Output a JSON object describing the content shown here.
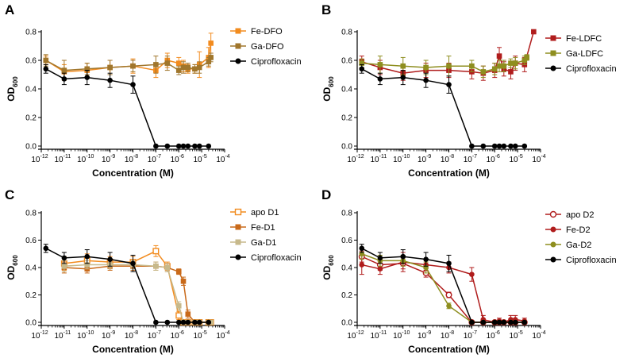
{
  "chart_data": [
    {
      "type": "line",
      "panel": "A",
      "xscale": "log",
      "xlim_log10": [
        -12,
        -4
      ],
      "ylim": [
        0,
        0.8
      ],
      "yticks": [
        0.0,
        0.2,
        0.4,
        0.6,
        0.8
      ],
      "xticks_log10": [
        -12,
        -11,
        -10,
        -9,
        -8,
        -7,
        -6,
        -5,
        -4
      ],
      "xlabel": "Concentration (M)",
      "ylabel": "OD",
      "ylabel_sub": "600",
      "legend_position": "top-right",
      "series": [
        {
          "name": "Fe-DFO",
          "color": "#f28b1e",
          "marker": "square",
          "filled": true,
          "line": true,
          "x_log10": [
            -11.8,
            -11,
            -10,
            -9,
            -8,
            -7,
            -6.5,
            -6,
            -5.8,
            -5.6,
            -5.3,
            -5.1,
            -4.7,
            -4.6
          ],
          "y": [
            0.6,
            0.52,
            0.53,
            0.55,
            0.56,
            0.53,
            0.6,
            0.58,
            0.56,
            0.54,
            0.54,
            0.57,
            0.62,
            0.72
          ],
          "err": [
            0.03,
            0.05,
            0.05,
            0.05,
            0.05,
            0.05,
            0.05,
            0.04,
            0.04,
            0.03,
            0.03,
            0.09,
            0.07,
            0.07
          ]
        },
        {
          "name": "Ga-DFO",
          "color": "#a0762c",
          "marker": "square",
          "filled": true,
          "line": true,
          "x_log10": [
            -11.8,
            -11,
            -10,
            -9,
            -8,
            -7,
            -6.5,
            -6,
            -5.8,
            -5.6,
            -5.3,
            -5.1,
            -4.7,
            -4.6
          ],
          "y": [
            0.6,
            0.53,
            0.54,
            0.55,
            0.56,
            0.57,
            0.58,
            0.53,
            0.55,
            0.55,
            0.54,
            0.55,
            0.59,
            0.62
          ],
          "err": [
            0.04,
            0.07,
            0.04,
            0.05,
            0.04,
            0.06,
            0.05,
            0.03,
            0.04,
            0.03,
            0.03,
            0.04,
            0.03,
            0.03
          ]
        },
        {
          "name": "Ciprofloxacin",
          "color": "#000000",
          "marker": "circle",
          "filled": true,
          "line": true,
          "x_log10": [
            -11.8,
            -11,
            -10,
            -9,
            -8,
            -7,
            -6.5,
            -6,
            -5.8,
            -5.6,
            -5.3,
            -5.1,
            -4.7
          ],
          "y": [
            0.54,
            0.47,
            0.48,
            0.46,
            0.43,
            0.0,
            0.0,
            0.0,
            0.0,
            0.0,
            0.0,
            0.0,
            0.0
          ],
          "err": [
            0.03,
            0.04,
            0.05,
            0.05,
            0.06,
            0,
            0,
            0,
            0,
            0,
            0,
            0,
            0
          ]
        }
      ]
    },
    {
      "type": "line",
      "panel": "B",
      "xscale": "log",
      "xlim_log10": [
        -12,
        -4
      ],
      "ylim": [
        0,
        0.8
      ],
      "yticks": [
        0.0,
        0.2,
        0.4,
        0.6,
        0.8
      ],
      "xticks_log10": [
        -12,
        -11,
        -10,
        -9,
        -8,
        -7,
        -6,
        -5,
        -4
      ],
      "xlabel": "Concentration (M)",
      "ylabel": "OD",
      "ylabel_sub": "600",
      "legend_position": "top-right",
      "series": [
        {
          "name": "Fe-LDFC",
          "color": "#b01c1c",
          "marker": "square",
          "filled": true,
          "line": true,
          "x_log10": [
            -11.8,
            -11,
            -10,
            -9,
            -8,
            -7,
            -6.5,
            -6,
            -5.8,
            -5.6,
            -5.3,
            -5.1,
            -4.7,
            -4.3
          ],
          "y": [
            0.59,
            0.55,
            0.51,
            0.53,
            0.53,
            0.52,
            0.51,
            0.53,
            0.63,
            0.54,
            0.52,
            0.58,
            0.57,
            0.8
          ],
          "err": [
            0.04,
            0.05,
            0.05,
            0.05,
            0.05,
            0.05,
            0.05,
            0.05,
            0.06,
            0.05,
            0.05,
            0.05,
            0.05,
            0
          ]
        },
        {
          "name": "Ga-LDFC",
          "color": "#8e8e1f",
          "marker": "square",
          "filled": true,
          "line": true,
          "x_log10": [
            -11.8,
            -11,
            -10,
            -9,
            -8,
            -7,
            -6.5,
            -6,
            -5.8,
            -5.6,
            -5.3,
            -5.1,
            -4.7,
            -4.6
          ],
          "y": [
            0.58,
            0.57,
            0.56,
            0.55,
            0.56,
            0.56,
            0.52,
            0.54,
            0.56,
            0.56,
            0.58,
            0.58,
            0.6,
            0.62
          ],
          "err": [
            0.03,
            0.06,
            0.06,
            0.05,
            0.07,
            0.04,
            0.04,
            0.04,
            0.04,
            0.04,
            0.03,
            0.04,
            0.03,
            0.02
          ]
        },
        {
          "name": "Ciprofloxacin",
          "color": "#000000",
          "marker": "circle",
          "filled": true,
          "line": true,
          "x_log10": [
            -11.8,
            -11,
            -10,
            -9,
            -8,
            -7,
            -6.5,
            -6,
            -5.8,
            -5.6,
            -5.3,
            -5.1,
            -4.7
          ],
          "y": [
            0.54,
            0.47,
            0.48,
            0.46,
            0.43,
            0.0,
            0.0,
            0.0,
            0.0,
            0.0,
            0.0,
            0.0,
            0.0
          ],
          "err": [
            0.03,
            0.04,
            0.05,
            0.05,
            0.06,
            0,
            0,
            0,
            0,
            0,
            0,
            0,
            0
          ]
        }
      ]
    },
    {
      "type": "line",
      "panel": "C",
      "xscale": "log",
      "xlim_log10": [
        -12,
        -4
      ],
      "ylim": [
        0,
        0.8
      ],
      "yticks": [
        0.0,
        0.2,
        0.4,
        0.6,
        0.8
      ],
      "xticks_log10": [
        -12,
        -11,
        -10,
        -9,
        -8,
        -7,
        -6,
        -5,
        -4
      ],
      "xlabel": "Concentration (M)",
      "ylabel": "OD",
      "ylabel_sub": "600",
      "legend_position": "top-right",
      "series": [
        {
          "name": "apo D1",
          "color": "#f28b1e",
          "marker": "square",
          "filled": false,
          "line": true,
          "x_log10": [
            -11,
            -10,
            -9,
            -8,
            -7,
            -6.5,
            -6,
            -5.8,
            -5.6,
            -5.3,
            -5.1,
            -4.7,
            -4.6
          ],
          "y": [
            0.43,
            0.45,
            0.44,
            0.44,
            0.52,
            0.41,
            0.05,
            0.0,
            0.0,
            0.0,
            0.0,
            0.0,
            0.0
          ],
          "err": [
            0.05,
            0.05,
            0.04,
            0.04,
            0.04,
            0.03,
            0.03,
            0,
            0,
            0,
            0,
            0,
            0
          ]
        },
        {
          "name": "Fe-D1",
          "color": "#c96a1a",
          "marker": "square",
          "filled": true,
          "line": true,
          "x_log10": [
            -11,
            -10,
            -9,
            -8,
            -7,
            -6.5,
            -6,
            -5.8,
            -5.6,
            -5.3,
            -5.1,
            -4.7,
            -4.6
          ],
          "y": [
            0.4,
            0.39,
            0.41,
            0.41,
            0.41,
            0.4,
            0.37,
            0.3,
            0.06,
            0.0,
            0.0,
            0.0,
            0.0
          ],
          "err": [
            0.04,
            0.03,
            0.03,
            0.03,
            0.03,
            0.03,
            0.02,
            0.03,
            0.03,
            0,
            0,
            0,
            0
          ]
        },
        {
          "name": "Ga-D1",
          "color": "#c7b98b",
          "marker": "square",
          "filled": true,
          "line": true,
          "x_log10": [
            -11,
            -10,
            -9,
            -8,
            -7,
            -6.5,
            -6,
            -5.8,
            -5.6,
            -5.3,
            -5.1,
            -4.7,
            -4.6
          ],
          "y": [
            0.41,
            0.42,
            0.42,
            0.42,
            0.41,
            0.4,
            0.12,
            0.0,
            0.0,
            0.0,
            0.0,
            0.0,
            0.0
          ],
          "err": [
            0.04,
            0.03,
            0.03,
            0.03,
            0.03,
            0.03,
            0.03,
            0,
            0,
            0,
            0,
            0,
            0
          ]
        },
        {
          "name": "Ciprofloxacin",
          "color": "#000000",
          "marker": "circle",
          "filled": true,
          "line": true,
          "x_log10": [
            -11.8,
            -11,
            -10,
            -9,
            -8,
            -7,
            -6.5,
            -6,
            -5.8,
            -5.6,
            -5.3,
            -5.1,
            -4.7
          ],
          "y": [
            0.54,
            0.47,
            0.48,
            0.46,
            0.43,
            0.0,
            0.0,
            0.0,
            0.0,
            0.0,
            0.0,
            0.0,
            0.0
          ],
          "err": [
            0.03,
            0.04,
            0.05,
            0.05,
            0.06,
            0,
            0,
            0,
            0,
            0,
            0,
            0,
            0
          ]
        }
      ]
    },
    {
      "type": "line",
      "panel": "D",
      "xscale": "log",
      "xlim_log10": [
        -12,
        -4
      ],
      "ylim": [
        0,
        0.8
      ],
      "yticks": [
        0.0,
        0.2,
        0.4,
        0.6,
        0.8
      ],
      "xticks_log10": [
        -12,
        -11,
        -10,
        -9,
        -8,
        -7,
        -6,
        -5,
        -4
      ],
      "xlabel": "Concentration (M)",
      "ylabel": "OD",
      "ylabel_sub": "600",
      "legend_position": "top-right",
      "series": [
        {
          "name": "apo D2",
          "color": "#b01c1c",
          "marker": "circle",
          "filled": false,
          "line": true,
          "x_log10": [
            -11.8,
            -11,
            -10,
            -9,
            -8,
            -7,
            -6.5,
            -6,
            -5.8,
            -5.6,
            -5.3,
            -5.1,
            -4.7
          ],
          "y": [
            0.48,
            0.42,
            0.43,
            0.36,
            0.2,
            0.0,
            0.0,
            0.0,
            0.0,
            0.0,
            0.0,
            0.0,
            0.0
          ],
          "err": [
            0.04,
            0.04,
            0.04,
            0.03,
            0.02,
            0,
            0,
            0,
            0,
            0,
            0,
            0,
            0
          ]
        },
        {
          "name": "Fe-D2",
          "color": "#b01c1c",
          "marker": "circle",
          "filled": true,
          "line": true,
          "x_log10": [
            -11.8,
            -11,
            -10,
            -9,
            -8,
            -7,
            -6.5,
            -6,
            -5.8,
            -5.6,
            -5.3,
            -5.1,
            -4.7
          ],
          "y": [
            0.42,
            0.39,
            0.44,
            0.42,
            0.4,
            0.35,
            0.02,
            0.0,
            0.01,
            0.0,
            0.02,
            0.02,
            0.01
          ],
          "err": [
            0.07,
            0.04,
            0.07,
            0.04,
            0.04,
            0.05,
            0.03,
            0,
            0.02,
            0,
            0.03,
            0.03,
            0.02
          ]
        },
        {
          "name": "Ga-D2",
          "color": "#8e8e1f",
          "marker": "circle",
          "filled": true,
          "line": true,
          "x_log10": [
            -11.8,
            -11,
            -10,
            -9,
            -8,
            -7,
            -6.5,
            -6,
            -5.8,
            -5.6,
            -5.3,
            -5.1,
            -4.7
          ],
          "y": [
            0.5,
            0.45,
            0.45,
            0.4,
            0.12,
            0.0,
            0.0,
            0.0,
            0.0,
            0.0,
            0.0,
            0.0,
            0.0
          ],
          "err": [
            0.04,
            0.04,
            0.04,
            0.04,
            0.02,
            0,
            0,
            0,
            0,
            0,
            0,
            0,
            0
          ]
        },
        {
          "name": "Ciprofloxacin",
          "color": "#000000",
          "marker": "circle",
          "filled": true,
          "line": true,
          "x_log10": [
            -11.8,
            -11,
            -10,
            -9,
            -8,
            -7,
            -6.5,
            -6,
            -5.8,
            -5.6,
            -5.3,
            -5.1,
            -4.7
          ],
          "y": [
            0.54,
            0.47,
            0.48,
            0.46,
            0.43,
            0.0,
            0.0,
            0.0,
            0.0,
            0.0,
            0.0,
            0.0,
            0.0
          ],
          "err": [
            0.03,
            0.04,
            0.05,
            0.05,
            0.06,
            0,
            0,
            0,
            0,
            0,
            0,
            0,
            0
          ]
        }
      ]
    }
  ]
}
